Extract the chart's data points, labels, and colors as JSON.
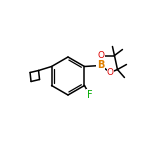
{
  "background_color": "#ffffff",
  "bond_color": "#000000",
  "atom_colors": {
    "B": "#e08000",
    "O": "#dd0000",
    "F": "#00aa00",
    "C": "#000000"
  },
  "figsize": [
    1.52,
    1.52
  ],
  "dpi": 100,
  "lw": 1.1,
  "lw2": 0.9
}
